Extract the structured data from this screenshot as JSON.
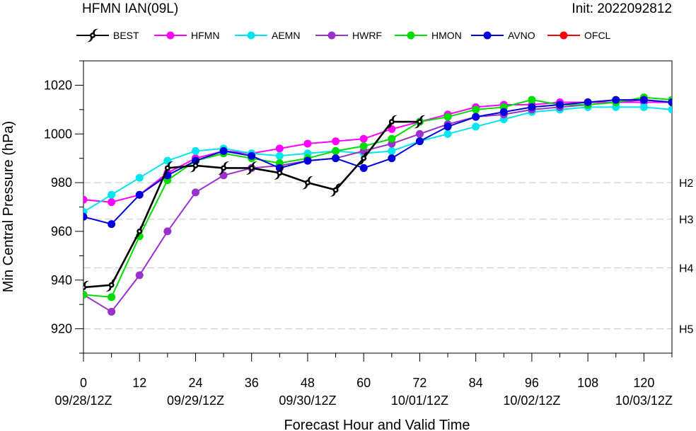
{
  "chart_data": {
    "type": "line",
    "title": "HFMN IAN(09L)",
    "subtitle": "Init: 2022092812",
    "xlabel": "Forecast Hour and Valid Time",
    "ylabel": "Min Central Pressure (hPa)",
    "xlim": [
      0,
      126
    ],
    "ylim": [
      910,
      1030
    ],
    "grid": false,
    "legend_position": "top",
    "x_ticks": [
      {
        "value": 0,
        "label": "0"
      },
      {
        "value": 12,
        "label": "12"
      },
      {
        "value": 24,
        "label": "24"
      },
      {
        "value": 36,
        "label": "36"
      },
      {
        "value": 48,
        "label": "48"
      },
      {
        "value": 60,
        "label": "60"
      },
      {
        "value": 72,
        "label": "72"
      },
      {
        "value": 84,
        "label": "84"
      },
      {
        "value": 96,
        "label": "96"
      },
      {
        "value": 108,
        "label": "108"
      },
      {
        "value": 120,
        "label": "120"
      }
    ],
    "date_labels": [
      {
        "value": 0,
        "label": "09/28/12Z"
      },
      {
        "value": 24,
        "label": "09/29/12Z"
      },
      {
        "value": 48,
        "label": "09/30/12Z"
      },
      {
        "value": 72,
        "label": "10/01/12Z"
      },
      {
        "value": 96,
        "label": "10/02/12Z"
      },
      {
        "value": 120,
        "label": "10/03/12Z"
      }
    ],
    "y_ticks": [
      920,
      940,
      960,
      980,
      1000,
      1020
    ],
    "reference_lines": [
      {
        "value": 980,
        "label": "H2"
      },
      {
        "value": 965,
        "label": "H3"
      },
      {
        "value": 945,
        "label": "H4"
      },
      {
        "value": 920,
        "label": "H5"
      }
    ],
    "series": [
      {
        "name": "BEST",
        "color": "#000000",
        "marker": "hurricane-icon",
        "x": [
          0,
          6,
          12,
          18,
          24,
          30,
          36,
          42,
          48,
          54,
          60,
          66,
          72
        ],
        "y": [
          937,
          938,
          960,
          986,
          987,
          986,
          986,
          984,
          980,
          977,
          990,
          1005,
          1005
        ]
      },
      {
        "name": "HFMN",
        "color": "#ff00ff",
        "marker": "circle",
        "x": [
          0,
          6,
          12,
          18,
          24,
          30,
          36,
          42,
          48,
          54,
          60,
          66,
          72,
          78,
          84,
          90,
          96,
          102,
          108,
          114,
          120,
          126
        ],
        "y": [
          973,
          972,
          975,
          984,
          990,
          993,
          992,
          994,
          996,
          997,
          998,
          1002,
          1005,
          1008,
          1011,
          1012,
          1012,
          1013,
          1013,
          1013,
          1013,
          1013
        ]
      },
      {
        "name": "AEMN",
        "color": "#00e5ee",
        "marker": "circle",
        "x": [
          0,
          6,
          12,
          18,
          24,
          30,
          36,
          42,
          48,
          54,
          60,
          66,
          72,
          78,
          84,
          90,
          96,
          102,
          108,
          114,
          120,
          126
        ],
        "y": [
          968,
          975,
          982,
          989,
          993,
          994,
          992,
          991,
          992,
          993,
          992,
          993,
          997,
          1000,
          1003,
          1006,
          1009,
          1010,
          1011,
          1011,
          1011,
          1010
        ]
      },
      {
        "name": "HWRF",
        "color": "#9932cc",
        "marker": "circle",
        "x": [
          0,
          6,
          12,
          18,
          24,
          30,
          36,
          42,
          48,
          54,
          60,
          66,
          72,
          78,
          84,
          90,
          96,
          102,
          108,
          114,
          120,
          126
        ],
        "y": [
          934,
          927,
          942,
          960,
          976,
          983,
          986,
          987,
          989,
          990,
          993,
          996,
          1000,
          1004,
          1007,
          1008,
          1010,
          1011,
          1012,
          1013,
          1014,
          1013
        ]
      },
      {
        "name": "HMON",
        "color": "#00dd00",
        "marker": "circle",
        "x": [
          0,
          6,
          12,
          18,
          24,
          30,
          36,
          42,
          48,
          54,
          60,
          66,
          72,
          78,
          84,
          90,
          96,
          102,
          108,
          114,
          120,
          126
        ],
        "y": [
          934,
          933,
          958,
          981,
          989,
          992,
          990,
          988,
          990,
          993,
          995,
          998,
          1005,
          1007,
          1010,
          1011,
          1014,
          1012,
          1012,
          1013,
          1015,
          1014
        ]
      },
      {
        "name": "AVNO",
        "color": "#0000dd",
        "marker": "circle",
        "x": [
          0,
          6,
          12,
          18,
          24,
          30,
          36,
          42,
          48,
          54,
          60,
          66,
          72,
          78,
          84,
          90,
          96,
          102,
          108,
          114,
          120,
          126
        ],
        "y": [
          966,
          963,
          975,
          983,
          989,
          993,
          991,
          986,
          989,
          990,
          986,
          990,
          997,
          1003,
          1007,
          1009,
          1011,
          1012,
          1013,
          1014,
          1014,
          1013
        ]
      },
      {
        "name": "OFCL",
        "color": "#ff0000",
        "marker": "circle",
        "x": [],
        "y": []
      }
    ]
  }
}
